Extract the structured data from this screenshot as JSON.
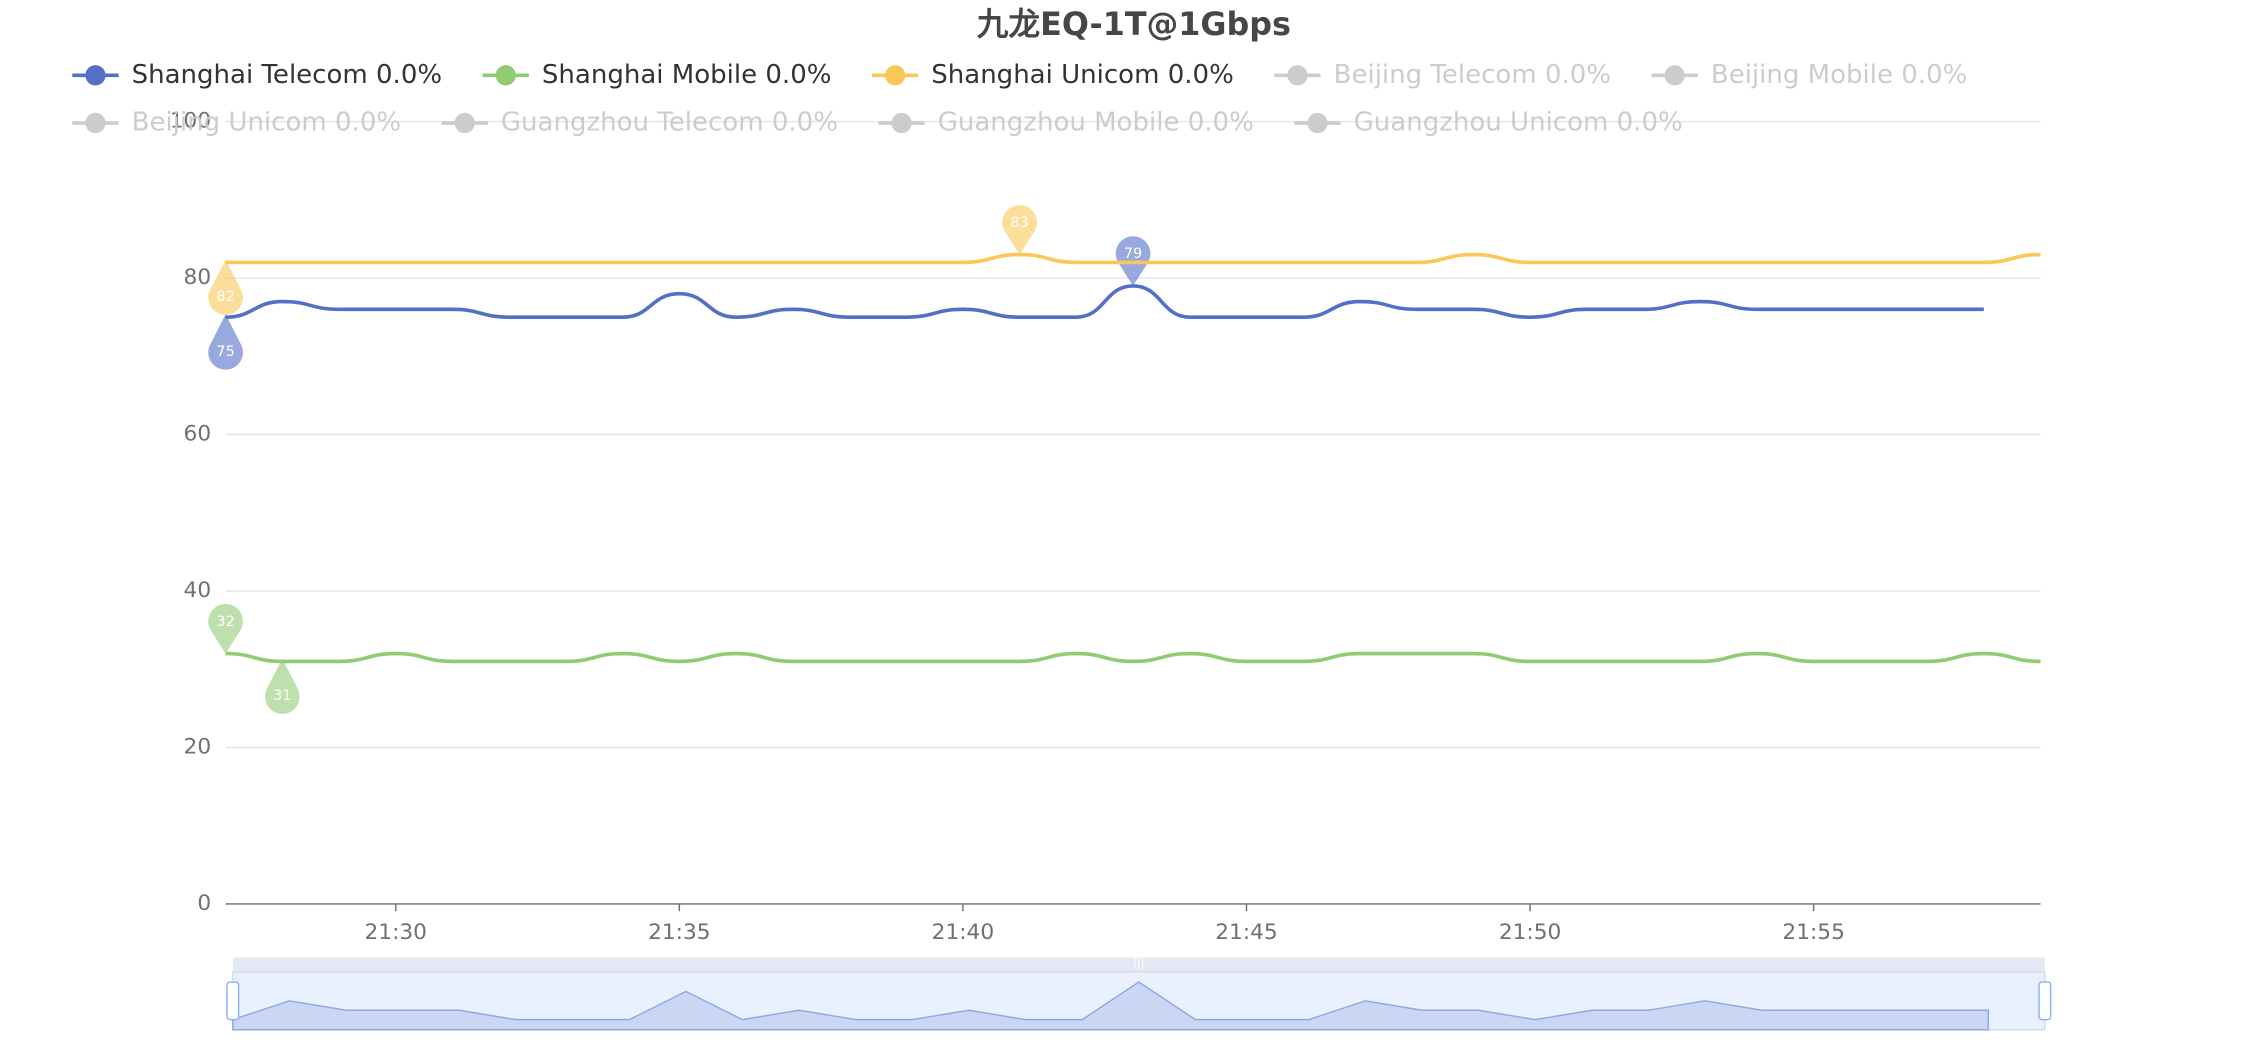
{
  "chart_data": {
    "type": "line",
    "title": "九龙EQ-1T@1Gbps",
    "categories": [
      "21:27",
      "21:28",
      "21:29",
      "21:30",
      "21:31",
      "21:32",
      "21:33",
      "21:34",
      "21:35",
      "21:36",
      "21:37",
      "21:38",
      "21:39",
      "21:40",
      "21:41",
      "21:42",
      "21:43",
      "21:44",
      "21:45",
      "21:46",
      "21:47",
      "21:48",
      "21:49",
      "21:50",
      "21:51",
      "21:52",
      "21:53",
      "21:54",
      "21:55",
      "21:56",
      "21:57",
      "21:58",
      "21:59"
    ],
    "xticks": [
      "21:30",
      "21:35",
      "21:40",
      "21:45",
      "21:50",
      "21:55"
    ],
    "ylim": [
      0,
      100
    ],
    "yticks": [
      0,
      20,
      40,
      60,
      80,
      100
    ],
    "grid": true,
    "smooth": true,
    "series": [
      {
        "name": "Shanghai Telecom 0.0%",
        "color": "#5470c6",
        "values": [
          75,
          77,
          76,
          76,
          76,
          75,
          75,
          75,
          78,
          75,
          76,
          75,
          75,
          76,
          75,
          75,
          79,
          75,
          75,
          75,
          77,
          76,
          76,
          75,
          76,
          76,
          77,
          76,
          76,
          76,
          76,
          76,
          null
        ],
        "markers": [
          16,
          0
        ]
      },
      {
        "name": "Shanghai Mobile 0.0%",
        "color": "#91cc75",
        "values": [
          32,
          31,
          31,
          32,
          31,
          31,
          31,
          32,
          31,
          32,
          31,
          31,
          31,
          31,
          31,
          32,
          31,
          32,
          31,
          31,
          32,
          32,
          32,
          31,
          31,
          31,
          31,
          32,
          31,
          31,
          31,
          32,
          31
        ],
        "markers": [
          0,
          1
        ]
      },
      {
        "name": "Shanghai Unicom 0.0%",
        "color": "#fac858",
        "values": [
          82,
          82,
          82,
          82,
          82,
          82,
          82,
          82,
          82,
          82,
          82,
          82,
          82,
          82,
          83,
          82,
          82,
          82,
          82,
          82,
          82,
          82,
          83,
          82,
          82,
          82,
          82,
          82,
          82,
          82,
          82,
          82,
          83
        ],
        "markers": [
          14,
          0
        ]
      }
    ],
    "hidden_series": [
      "Beijing Telecom 0.0%",
      "Beijing Mobile 0.0%",
      "Beijing Unicom 0.0%",
      "Guangzhou Telecom 0.0%",
      "Guangzhou Mobile 0.0%",
      "Guangzhou Unicom 0.0%"
    ],
    "hidden_color": "#cccccc"
  }
}
